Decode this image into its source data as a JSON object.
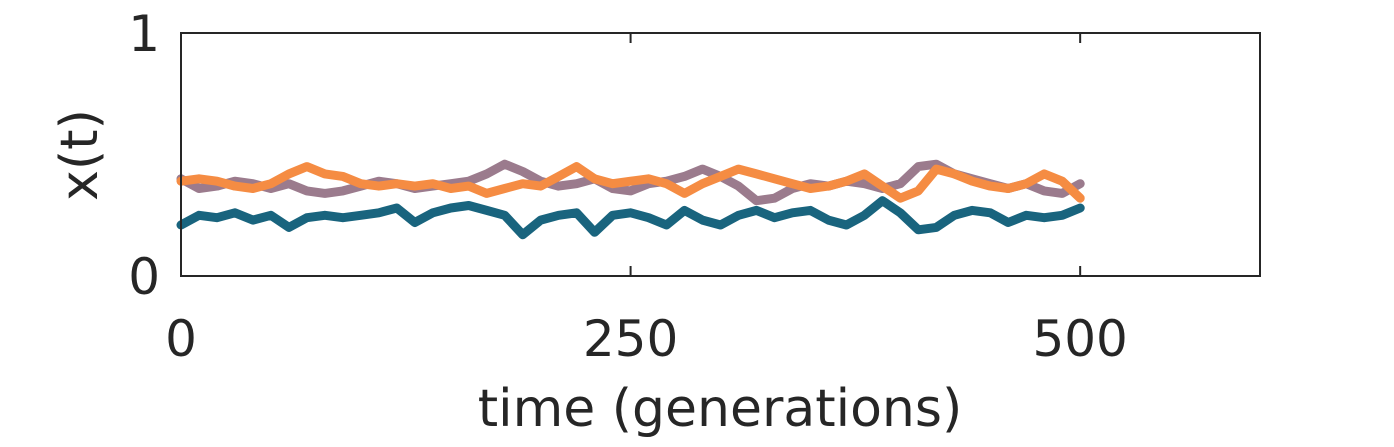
{
  "chart_data": {
    "type": "line",
    "title": "",
    "xlabel": "time (generations)",
    "ylabel": "x(t)",
    "xlim": [
      0,
      600
    ],
    "ylim": [
      0,
      1
    ],
    "xticks": [
      0,
      250,
      500
    ],
    "xtick_labels": [
      "0",
      "250",
      "500"
    ],
    "yticks": [
      0,
      1
    ],
    "ytick_labels": [
      "0",
      "1"
    ],
    "grid": false,
    "series": [
      {
        "color": "#9b7b8d",
        "x": [
          0,
          10,
          20,
          30,
          40,
          50,
          60,
          70,
          80,
          90,
          100,
          110,
          120,
          130,
          140,
          150,
          160,
          170,
          180,
          190,
          200,
          210,
          220,
          230,
          240,
          250,
          260,
          270,
          280,
          290,
          300,
          310,
          320,
          330,
          340,
          350,
          360,
          370,
          380,
          390,
          400,
          410,
          420,
          430,
          440,
          450,
          460,
          470,
          480,
          490,
          500
        ],
        "y": [
          0.4,
          0.36,
          0.37,
          0.39,
          0.38,
          0.36,
          0.38,
          0.35,
          0.34,
          0.35,
          0.37,
          0.39,
          0.38,
          0.36,
          0.37,
          0.38,
          0.39,
          0.42,
          0.46,
          0.43,
          0.39,
          0.37,
          0.38,
          0.4,
          0.36,
          0.35,
          0.38,
          0.39,
          0.41,
          0.44,
          0.41,
          0.37,
          0.31,
          0.32,
          0.36,
          0.38,
          0.37,
          0.39,
          0.38,
          0.36,
          0.38,
          0.45,
          0.46,
          0.42,
          0.4,
          0.38,
          0.36,
          0.38,
          0.35,
          0.34,
          0.38
        ]
      },
      {
        "color": "#19647e",
        "x": [
          0,
          10,
          20,
          30,
          40,
          50,
          60,
          70,
          80,
          90,
          100,
          110,
          120,
          130,
          140,
          150,
          160,
          170,
          180,
          190,
          200,
          210,
          220,
          230,
          240,
          250,
          260,
          270,
          280,
          290,
          300,
          310,
          320,
          330,
          340,
          350,
          360,
          370,
          380,
          390,
          400,
          410,
          420,
          430,
          440,
          450,
          460,
          470,
          480,
          490,
          500
        ],
        "y": [
          0.21,
          0.25,
          0.24,
          0.26,
          0.23,
          0.25,
          0.2,
          0.24,
          0.25,
          0.24,
          0.25,
          0.26,
          0.28,
          0.22,
          0.26,
          0.28,
          0.29,
          0.27,
          0.25,
          0.17,
          0.23,
          0.25,
          0.26,
          0.18,
          0.25,
          0.26,
          0.24,
          0.21,
          0.27,
          0.23,
          0.21,
          0.25,
          0.27,
          0.24,
          0.26,
          0.27,
          0.23,
          0.21,
          0.25,
          0.31,
          0.26,
          0.19,
          0.2,
          0.25,
          0.27,
          0.26,
          0.22,
          0.25,
          0.24,
          0.25,
          0.28
        ]
      },
      {
        "color": "#f58c43",
        "x": [
          0,
          10,
          20,
          30,
          40,
          50,
          60,
          70,
          80,
          90,
          100,
          110,
          120,
          130,
          140,
          150,
          160,
          170,
          180,
          190,
          200,
          210,
          220,
          230,
          240,
          250,
          260,
          270,
          280,
          290,
          300,
          310,
          320,
          330,
          340,
          350,
          360,
          370,
          380,
          390,
          400,
          410,
          420,
          430,
          440,
          450,
          460,
          470,
          480,
          490,
          500
        ],
        "y": [
          0.39,
          0.4,
          0.39,
          0.37,
          0.36,
          0.38,
          0.42,
          0.45,
          0.42,
          0.41,
          0.38,
          0.37,
          0.38,
          0.37,
          0.38,
          0.36,
          0.37,
          0.34,
          0.36,
          0.38,
          0.37,
          0.41,
          0.45,
          0.4,
          0.38,
          0.39,
          0.4,
          0.38,
          0.34,
          0.38,
          0.41,
          0.44,
          0.42,
          0.4,
          0.38,
          0.36,
          0.37,
          0.39,
          0.42,
          0.37,
          0.32,
          0.35,
          0.44,
          0.42,
          0.39,
          0.37,
          0.36,
          0.38,
          0.42,
          0.39,
          0.32
        ]
      }
    ]
  }
}
